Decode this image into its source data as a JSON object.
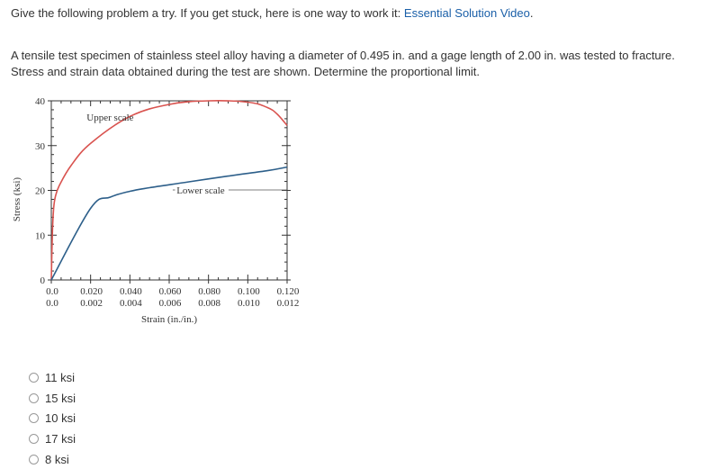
{
  "intro": {
    "text": "Give the following problem a try.  If you get stuck, here is one way to work it: ",
    "link_label": "Essential Solution Video",
    "period": "."
  },
  "problem_text": "A tensile test specimen of stainless steel alloy having a diameter of 0.495 in. and a gage length of 2.00 in. was tested to fracture. Stress and strain data obtained during the test are shown. Determine the proportional limit.",
  "chart_data": {
    "type": "line",
    "ylabel": "Stress (ksi)",
    "xlabel": "Strain (in./in.)",
    "ylim": [
      0,
      40
    ],
    "y_ticks": [
      "0",
      "10",
      "20",
      "30",
      "40"
    ],
    "upper_x_ticks": [
      "0.0",
      "0.020",
      "0.040",
      "0.060",
      "0.080",
      "0.100",
      "0.120"
    ],
    "lower_x_ticks": [
      "0.0",
      "0.002",
      "0.004",
      "0.006",
      "0.008",
      "0.010",
      "0.012"
    ],
    "colors": {
      "upper": "#d9534f",
      "lower": "#2d5f8a"
    },
    "series": [
      {
        "name": "Upper scale",
        "x_scale": "upper",
        "x": [
          0.0,
          0.0006,
          0.0012,
          0.002,
          0.004,
          0.01,
          0.02,
          0.04,
          0.06,
          0.08,
          0.1,
          0.11,
          0.115,
          0.12
        ],
        "y": [
          0.0,
          11.0,
          16.0,
          18.5,
          21.0,
          25.5,
          30.5,
          36.5,
          39.2,
          40.0,
          39.7,
          38.5,
          37.0,
          34.5
        ]
      },
      {
        "name": "Lower scale",
        "x_scale": "lower",
        "x": [
          0.0,
          0.002,
          0.003,
          0.004,
          0.005,
          0.007,
          0.009,
          0.011,
          0.012
        ],
        "y": [
          0.0,
          16.0,
          18.5,
          19.8,
          20.6,
          21.9,
          23.2,
          24.4,
          25.2
        ]
      }
    ]
  },
  "options": [
    "11 ksi",
    "15 ksi",
    "10 ksi",
    "17 ksi",
    "8 ksi"
  ]
}
